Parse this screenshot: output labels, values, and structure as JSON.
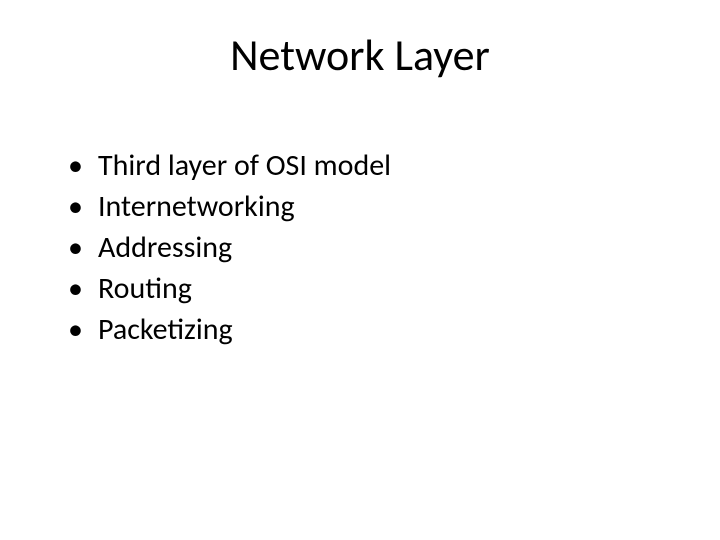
{
  "slide": {
    "title": "Network Layer",
    "title_fontsize": 44,
    "title_color": "#000000",
    "bullets": [
      "Third layer of OSI model",
      "Internetworking",
      "Addressing",
      "Routing",
      "Packetizing"
    ],
    "bullet_fontsize": 30,
    "bullet_color": "#000000",
    "bullet_line_height": 1.3,
    "background_color": "#ffffff"
  }
}
